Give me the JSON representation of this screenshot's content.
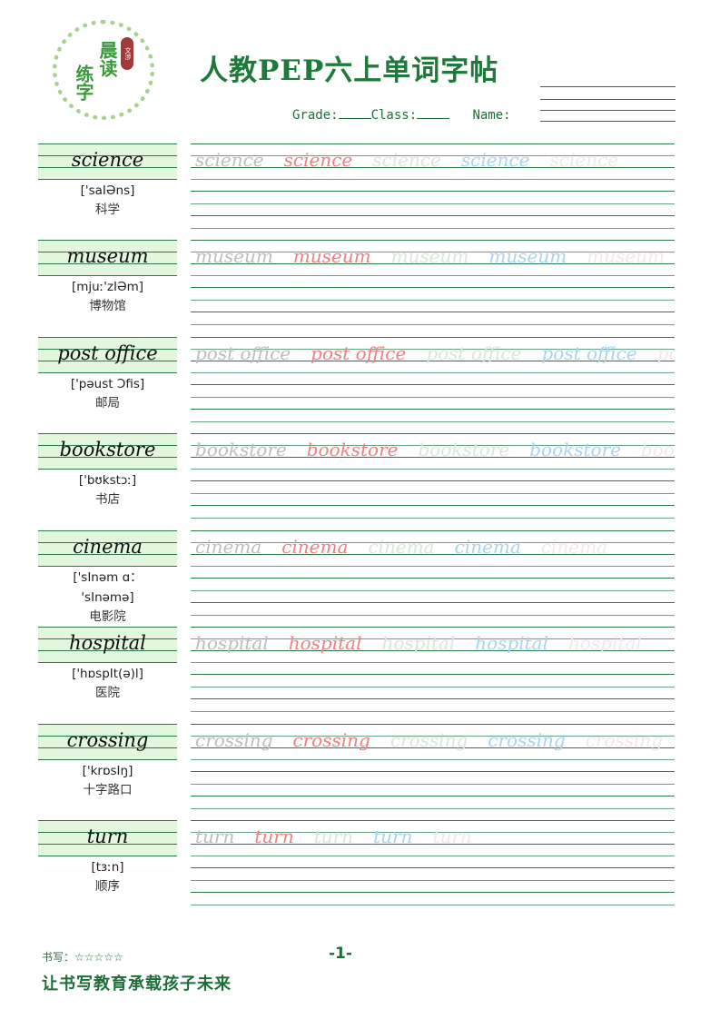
{
  "logo": {
    "line1": "晨读",
    "line2": "练字",
    "seal": "文涉"
  },
  "title": "人教PEP六上单词字帖",
  "info": {
    "grade_label": "Grade:",
    "class_label": "Class:",
    "name_label": "Name:"
  },
  "practice_colors": [
    "#bdbdbd",
    "#f08080",
    "#d8e8d8",
    "#a8d4f0",
    "#f4e6ee"
  ],
  "words": [
    {
      "word": "science",
      "ipa": [
        "['saIƏns]"
      ],
      "cn": "科学"
    },
    {
      "word": "museum",
      "ipa": [
        "[mjuː'zIƏm]"
      ],
      "cn": "博物馆"
    },
    {
      "word": "post office",
      "ipa": [
        "['pəust Ɔfis]"
      ],
      "cn": "邮局"
    },
    {
      "word": "bookstore",
      "ipa": [
        "['bʊkstɔː]"
      ],
      "cn": "书店"
    },
    {
      "word": "cinema",
      "ipa": [
        "['sInəm ɑ：",
        "'sInəmə]"
      ],
      "cn": "电影院"
    },
    {
      "word": "hospital",
      "ipa": [
        "['hɒspIt(ə)l]"
      ],
      "cn": "医院"
    },
    {
      "word": "crossing",
      "ipa": [
        "['krɒsIŋ]"
      ],
      "cn": "十字路口"
    },
    {
      "word": "turn",
      "ipa": [
        "[tɜːn]"
      ],
      "cn": "顺序"
    }
  ],
  "footer": {
    "rating": "书写：☆☆☆☆☆",
    "page": "-1-",
    "slogan": "让书写教育承载孩子未来"
  }
}
